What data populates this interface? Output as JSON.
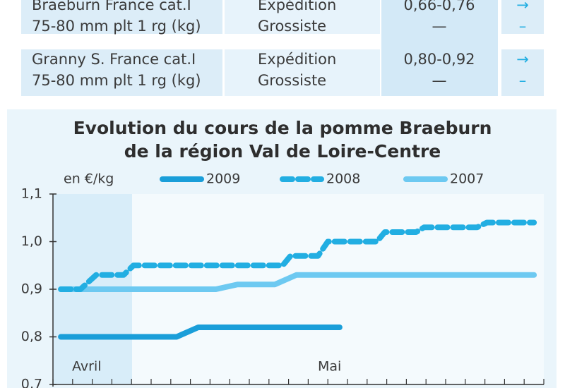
{
  "table": {
    "rows": [
      [
        [
          "Braeburn France cat.I",
          "75-80 mm plt 1 rg (kg)"
        ],
        [
          "Expédition",
          "Grossiste"
        ],
        [
          "0,66-0,76",
          "—"
        ],
        [
          "→",
          "–"
        ]
      ],
      [
        [
          "Granny S. France cat.I",
          "75-80 mm plt 1 rg (kg)"
        ],
        [
          "Expédition",
          "Grossiste"
        ],
        [
          "0,80-0,92",
          "—"
        ],
        [
          "→",
          "–"
        ]
      ]
    ]
  },
  "chart_data": {
    "type": "line",
    "title": [
      "Evolution du cours de la pomme Braeburn",
      "de la région Val de Loire-Centre"
    ],
    "ylabel": "en €/kg",
    "annotations": [
      "Avril",
      "Mai"
    ],
    "xlim": [
      0,
      25
    ],
    "xticks": [
      0,
      1,
      2,
      3,
      4,
      5,
      6,
      7,
      8,
      9,
      10,
      11,
      12,
      13,
      14,
      15,
      16,
      17,
      18,
      19,
      20,
      21,
      22,
      23,
      24,
      25
    ],
    "ylim": [
      0.7,
      1.1
    ],
    "yticks": [
      {
        "value": 0.7,
        "label": "0,7"
      },
      {
        "value": 0.8,
        "label": "0,8"
      },
      {
        "value": 0.9,
        "label": "0,9"
      },
      {
        "value": 1.0,
        "label": "1,0"
      },
      {
        "value": 1.1,
        "label": "1,1"
      }
    ],
    "series": [
      {
        "name": "2009",
        "color": "#1a9ed9",
        "dashed": false,
        "x": [
          0.4,
          6.3,
          7.4,
          14.6
        ],
        "values": [
          0.8,
          0.8,
          0.82,
          0.82
        ]
      },
      {
        "name": "2008",
        "color": "#22aee2",
        "dashed": true,
        "x": [
          0.4,
          1.4,
          2.2,
          3.6,
          4.1,
          11.7,
          12.1,
          13.5,
          14,
          16.5,
          16.9,
          18.5,
          18.9,
          21.6,
          22.1,
          24.5
        ],
        "values": [
          0.9,
          0.9,
          0.93,
          0.93,
          0.95,
          0.95,
          0.97,
          0.97,
          1.0,
          1.0,
          1.02,
          1.02,
          1.03,
          1.03,
          1.04,
          1.04
        ]
      },
      {
        "name": "2007",
        "color": "#6dc9f1",
        "dashed": false,
        "x": [
          0.4,
          8.3,
          9.4,
          11.3,
          12.4,
          24.5
        ],
        "values": [
          0.9,
          0.9,
          0.91,
          0.91,
          0.93,
          0.93
        ]
      }
    ]
  }
}
